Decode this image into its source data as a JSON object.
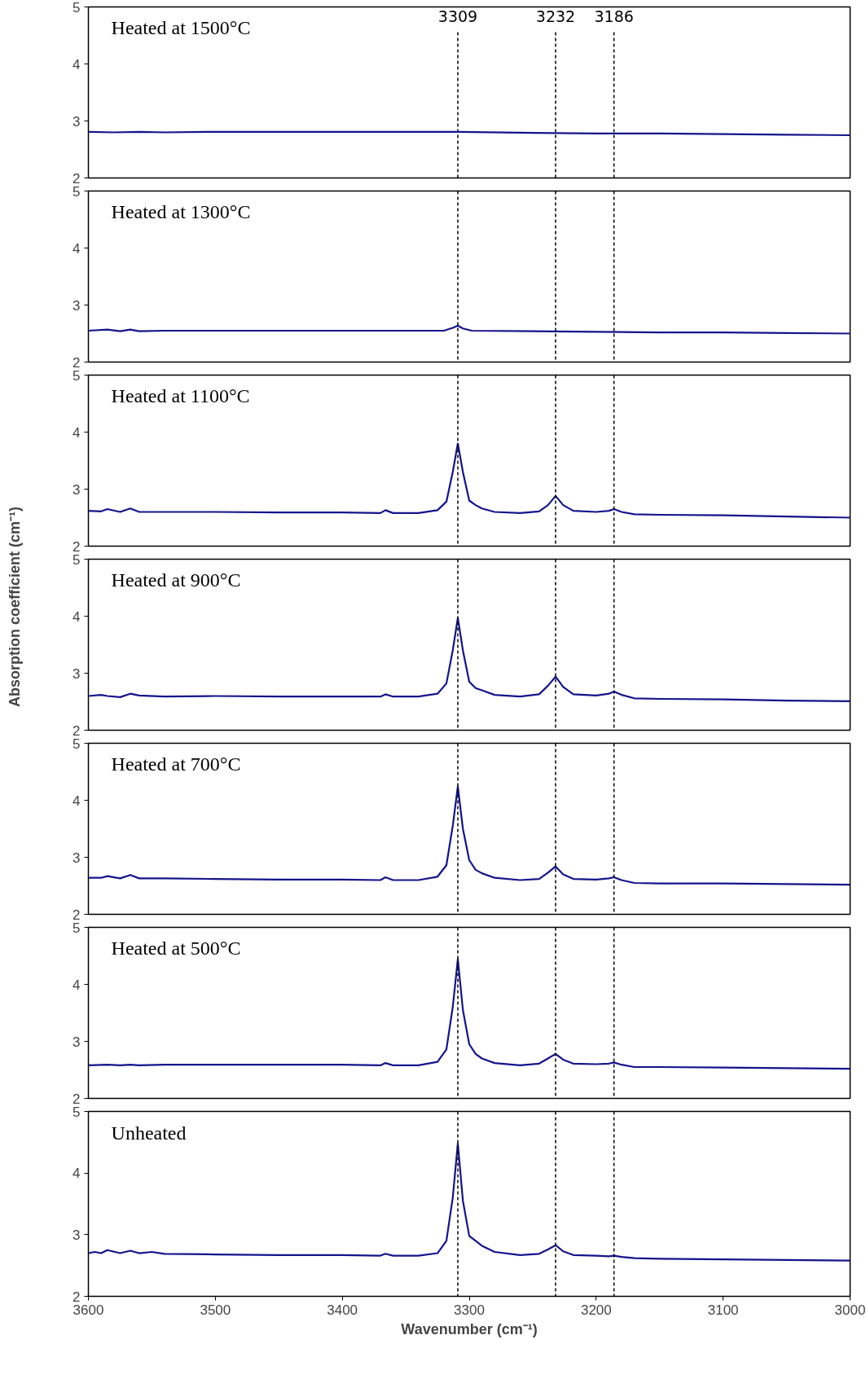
{
  "chart_data": [
    {
      "type": "line",
      "annotations": [
        "Heated at 1500°C"
      ],
      "xlim": [
        3600,
        3000
      ],
      "xticks": [
        3600,
        3500,
        3400,
        3300,
        3200,
        3100,
        3000
      ],
      "ylim": [
        2,
        5
      ],
      "yticks": [
        2,
        3,
        4,
        5
      ],
      "tick_labels": "y",
      "grid": false,
      "line_style": "solid",
      "marker": "none",
      "ref_lines": [
        {
          "axis": "x",
          "value": 3309,
          "label": "3309",
          "line_style": "dashed",
          "color": "#000000"
        },
        {
          "axis": "x",
          "value": 3232,
          "label": "3232",
          "line_style": "dashed",
          "color": "#000000"
        },
        {
          "axis": "x",
          "value": 3186,
          "label": "3186",
          "line_style": "dashed",
          "color": "#000000"
        }
      ],
      "series": [
        {
          "color": "#14148c",
          "x": [
            3600,
            3580,
            3560,
            3540,
            3500,
            3450,
            3400,
            3350,
            3309,
            3250,
            3200,
            3150,
            3100,
            3050,
            3000
          ],
          "values": [
            2.81,
            2.8,
            2.81,
            2.8,
            2.81,
            2.81,
            2.81,
            2.81,
            2.81,
            2.79,
            2.78,
            2.78,
            2.77,
            2.76,
            2.75
          ]
        }
      ]
    },
    {
      "type": "line",
      "annotations": [
        "Heated at 1300°C"
      ],
      "xlim": [
        3600,
        3000
      ],
      "xticks": [
        3600,
        3500,
        3400,
        3300,
        3200,
        3100,
        3000
      ],
      "ylim": [
        2,
        5
      ],
      "yticks": [
        2,
        3,
        4,
        5
      ],
      "tick_labels": "y",
      "grid": false,
      "line_style": "solid",
      "marker": "none",
      "ref_lines": [
        {
          "axis": "x",
          "value": 3309,
          "line_style": "dashed",
          "color": "#000000"
        },
        {
          "axis": "x",
          "value": 3232,
          "line_style": "dashed",
          "color": "#000000"
        },
        {
          "axis": "x",
          "value": 3186,
          "line_style": "dashed",
          "color": "#000000"
        }
      ],
      "series": [
        {
          "color": "#14148c",
          "x": [
            3600,
            3585,
            3575,
            3567,
            3560,
            3540,
            3500,
            3450,
            3400,
            3350,
            3320,
            3313,
            3309,
            3305,
            3298,
            3250,
            3200,
            3150,
            3100,
            3050,
            3000
          ],
          "values": [
            2.55,
            2.57,
            2.54,
            2.57,
            2.54,
            2.55,
            2.55,
            2.55,
            2.55,
            2.55,
            2.55,
            2.6,
            2.64,
            2.59,
            2.55,
            2.54,
            2.53,
            2.52,
            2.52,
            2.51,
            2.5
          ]
        }
      ]
    },
    {
      "type": "line",
      "annotations": [
        "Heated at 1100°C"
      ],
      "xlim": [
        3600,
        3000
      ],
      "xticks": [
        3600,
        3500,
        3400,
        3300,
        3200,
        3100,
        3000
      ],
      "ylim": [
        2,
        5
      ],
      "yticks": [
        2,
        3,
        4,
        5
      ],
      "tick_labels": "y",
      "grid": false,
      "line_style": "solid",
      "marker": "none",
      "ref_lines": [
        {
          "axis": "x",
          "value": 3309,
          "line_style": "dashed",
          "color": "#000000"
        },
        {
          "axis": "x",
          "value": 3232,
          "line_style": "dashed",
          "color": "#000000"
        },
        {
          "axis": "x",
          "value": 3186,
          "line_style": "dashed",
          "color": "#000000"
        }
      ],
      "series": [
        {
          "color": "#14148c",
          "x": [
            3600,
            3590,
            3585,
            3575,
            3567,
            3560,
            3540,
            3500,
            3450,
            3400,
            3370,
            3366,
            3360,
            3340,
            3325,
            3318,
            3313,
            3309,
            3305,
            3300,
            3295,
            3290,
            3280,
            3260,
            3245,
            3238,
            3232,
            3226,
            3218,
            3200,
            3190,
            3186,
            3180,
            3170,
            3150,
            3100,
            3050,
            3000
          ],
          "values": [
            2.62,
            2.61,
            2.65,
            2.6,
            2.66,
            2.6,
            2.6,
            2.6,
            2.59,
            2.59,
            2.58,
            2.63,
            2.58,
            2.58,
            2.63,
            2.78,
            3.3,
            3.8,
            3.3,
            2.8,
            2.72,
            2.66,
            2.6,
            2.58,
            2.61,
            2.72,
            2.88,
            2.72,
            2.62,
            2.6,
            2.62,
            2.65,
            2.6,
            2.56,
            2.55,
            2.54,
            2.52,
            2.5
          ]
        }
      ]
    },
    {
      "type": "line",
      "ylabel": "Absorption coefficient (cm⁻¹)",
      "annotations": [
        "Heated at 900°C"
      ],
      "xlim": [
        3600,
        3000
      ],
      "xticks": [
        3600,
        3500,
        3400,
        3300,
        3200,
        3100,
        3000
      ],
      "ylim": [
        2,
        5
      ],
      "yticks": [
        2,
        3,
        4,
        5
      ],
      "tick_labels": "y",
      "grid": false,
      "line_style": "solid",
      "marker": "none",
      "ref_lines": [
        {
          "axis": "x",
          "value": 3309,
          "line_style": "dashed",
          "color": "#000000"
        },
        {
          "axis": "x",
          "value": 3232,
          "line_style": "dashed",
          "color": "#000000"
        },
        {
          "axis": "x",
          "value": 3186,
          "line_style": "dashed",
          "color": "#000000"
        }
      ],
      "series": [
        {
          "color": "#14148c",
          "x": [
            3600,
            3590,
            3585,
            3575,
            3567,
            3560,
            3540,
            3500,
            3450,
            3400,
            3370,
            3366,
            3360,
            3340,
            3325,
            3318,
            3313,
            3309,
            3305,
            3300,
            3295,
            3290,
            3280,
            3260,
            3245,
            3238,
            3232,
            3226,
            3218,
            3200,
            3190,
            3186,
            3180,
            3170,
            3150,
            3100,
            3050,
            3000
          ],
          "values": [
            2.6,
            2.62,
            2.6,
            2.58,
            2.64,
            2.61,
            2.59,
            2.6,
            2.59,
            2.59,
            2.59,
            2.63,
            2.59,
            2.59,
            2.64,
            2.82,
            3.4,
            3.97,
            3.4,
            2.85,
            2.74,
            2.7,
            2.62,
            2.59,
            2.63,
            2.78,
            2.94,
            2.76,
            2.63,
            2.61,
            2.64,
            2.68,
            2.62,
            2.56,
            2.55,
            2.54,
            2.52,
            2.51
          ]
        }
      ]
    },
    {
      "type": "line",
      "annotations": [
        "Heated at 700°C"
      ],
      "xlim": [
        3600,
        3000
      ],
      "xticks": [
        3600,
        3500,
        3400,
        3300,
        3200,
        3100,
        3000
      ],
      "ylim": [
        2,
        5
      ],
      "yticks": [
        2,
        3,
        4,
        5
      ],
      "tick_labels": "y",
      "grid": false,
      "line_style": "solid",
      "marker": "none",
      "ref_lines": [
        {
          "axis": "x",
          "value": 3309,
          "line_style": "dashed",
          "color": "#000000"
        },
        {
          "axis": "x",
          "value": 3232,
          "line_style": "dashed",
          "color": "#000000"
        },
        {
          "axis": "x",
          "value": 3186,
          "line_style": "dashed",
          "color": "#000000"
        }
      ],
      "series": [
        {
          "color": "#14148c",
          "x": [
            3600,
            3590,
            3585,
            3575,
            3567,
            3560,
            3540,
            3500,
            3450,
            3400,
            3370,
            3366,
            3360,
            3340,
            3325,
            3318,
            3313,
            3309,
            3305,
            3300,
            3295,
            3290,
            3280,
            3260,
            3245,
            3238,
            3232,
            3226,
            3218,
            3200,
            3190,
            3186,
            3180,
            3170,
            3150,
            3100,
            3050,
            3000
          ],
          "values": [
            2.64,
            2.64,
            2.67,
            2.63,
            2.69,
            2.63,
            2.63,
            2.62,
            2.61,
            2.61,
            2.6,
            2.65,
            2.6,
            2.6,
            2.66,
            2.86,
            3.55,
            4.24,
            3.5,
            2.95,
            2.78,
            2.72,
            2.64,
            2.6,
            2.62,
            2.73,
            2.84,
            2.7,
            2.62,
            2.61,
            2.63,
            2.65,
            2.6,
            2.55,
            2.54,
            2.54,
            2.53,
            2.52
          ]
        }
      ]
    },
    {
      "type": "line",
      "annotations": [
        "Heated at 500°C"
      ],
      "xlim": [
        3600,
        3000
      ],
      "xticks": [
        3600,
        3500,
        3400,
        3300,
        3200,
        3100,
        3000
      ],
      "ylim": [
        2,
        5
      ],
      "yticks": [
        2,
        3,
        4,
        5
      ],
      "tick_labels": "y",
      "grid": false,
      "line_style": "solid",
      "marker": "none",
      "ref_lines": [
        {
          "axis": "x",
          "value": 3309,
          "line_style": "dashed",
          "color": "#000000"
        },
        {
          "axis": "x",
          "value": 3232,
          "line_style": "dashed",
          "color": "#000000"
        },
        {
          "axis": "x",
          "value": 3186,
          "line_style": "dashed",
          "color": "#000000"
        }
      ],
      "series": [
        {
          "color": "#14148c",
          "x": [
            3600,
            3585,
            3575,
            3567,
            3560,
            3540,
            3500,
            3450,
            3400,
            3370,
            3366,
            3360,
            3340,
            3325,
            3318,
            3313,
            3309,
            3305,
            3300,
            3295,
            3290,
            3280,
            3260,
            3245,
            3238,
            3232,
            3226,
            3218,
            3200,
            3190,
            3186,
            3180,
            3170,
            3150,
            3100,
            3050,
            3000
          ],
          "values": [
            2.58,
            2.59,
            2.58,
            2.59,
            2.58,
            2.59,
            2.59,
            2.59,
            2.59,
            2.58,
            2.62,
            2.58,
            2.58,
            2.64,
            2.86,
            3.6,
            4.44,
            3.55,
            2.95,
            2.78,
            2.7,
            2.62,
            2.58,
            2.61,
            2.7,
            2.78,
            2.68,
            2.61,
            2.6,
            2.61,
            2.63,
            2.59,
            2.55,
            2.55,
            2.54,
            2.53,
            2.52
          ]
        }
      ]
    },
    {
      "type": "line",
      "xlabel": "Wavenumber (cm⁻¹)",
      "annotations": [
        "Unheated"
      ],
      "xlim": [
        3600,
        3000
      ],
      "xticks": [
        3600,
        3500,
        3400,
        3300,
        3200,
        3100,
        3000
      ],
      "ylim": [
        2,
        5
      ],
      "yticks": [
        2,
        3,
        4,
        5
      ],
      "grid": false,
      "line_style": "solid",
      "marker": "none",
      "ref_lines": [
        {
          "axis": "x",
          "value": 3309,
          "line_style": "dashed",
          "color": "#000000"
        },
        {
          "axis": "x",
          "value": 3232,
          "line_style": "dashed",
          "color": "#000000"
        },
        {
          "axis": "x",
          "value": 3186,
          "line_style": "dashed",
          "color": "#000000"
        }
      ],
      "series": [
        {
          "color": "#14148c",
          "x": [
            3600,
            3595,
            3590,
            3585,
            3575,
            3567,
            3560,
            3550,
            3540,
            3500,
            3450,
            3400,
            3370,
            3366,
            3360,
            3340,
            3325,
            3318,
            3313,
            3309,
            3305,
            3300,
            3295,
            3290,
            3280,
            3260,
            3245,
            3238,
            3232,
            3226,
            3218,
            3200,
            3190,
            3186,
            3180,
            3170,
            3150,
            3100,
            3050,
            3000
          ],
          "values": [
            2.7,
            2.72,
            2.7,
            2.75,
            2.7,
            2.74,
            2.7,
            2.72,
            2.69,
            2.68,
            2.67,
            2.67,
            2.66,
            2.69,
            2.66,
            2.66,
            2.7,
            2.9,
            3.6,
            4.48,
            3.55,
            2.98,
            2.9,
            2.82,
            2.72,
            2.67,
            2.69,
            2.76,
            2.83,
            2.73,
            2.67,
            2.66,
            2.65,
            2.66,
            2.64,
            2.62,
            2.61,
            2.6,
            2.59,
            2.58
          ]
        }
      ]
    }
  ]
}
